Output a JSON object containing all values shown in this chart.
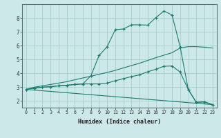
{
  "xlabel": "Humidex (Indice chaleur)",
  "bg_color": "#cce8e8",
  "grid_color": "#aacccc",
  "line_color": "#1a7a6e",
  "xlim": [
    -0.5,
    23.5
  ],
  "ylim": [
    1.5,
    9.0
  ],
  "x_ticks": [
    0,
    1,
    2,
    3,
    4,
    5,
    6,
    7,
    8,
    9,
    10,
    11,
    12,
    13,
    14,
    15,
    16,
    17,
    18,
    19,
    20,
    21,
    22,
    23
  ],
  "y_ticks": [
    2,
    3,
    4,
    5,
    6,
    7,
    8
  ],
  "line1_x": [
    0,
    1,
    2,
    3,
    4,
    5,
    6,
    7,
    8,
    9,
    10,
    11,
    12,
    13,
    14,
    15,
    16,
    17,
    18,
    19,
    20,
    21,
    22,
    23
  ],
  "line1_y": [
    2.82,
    2.92,
    2.98,
    3.02,
    3.08,
    3.12,
    3.18,
    3.22,
    3.82,
    5.28,
    5.92,
    7.15,
    7.2,
    7.5,
    7.5,
    7.48,
    8.02,
    8.5,
    8.22,
    5.92,
    2.82,
    1.88,
    1.92,
    1.72
  ],
  "line2_x": [
    0,
    1,
    2,
    3,
    4,
    5,
    6,
    7,
    8,
    9,
    10,
    11,
    12,
    13,
    14,
    15,
    16,
    17,
    18,
    19,
    20,
    21,
    22,
    23
  ],
  "line2_y": [
    2.82,
    2.92,
    2.98,
    3.02,
    3.08,
    3.12,
    3.18,
    3.22,
    3.22,
    3.22,
    3.28,
    3.45,
    3.6,
    3.75,
    3.88,
    4.1,
    4.28,
    4.5,
    4.52,
    4.08,
    2.82,
    1.88,
    1.92,
    1.72
  ],
  "line3_x": [
    0,
    1,
    2,
    3,
    4,
    5,
    6,
    7,
    8,
    9,
    10,
    11,
    12,
    13,
    14,
    15,
    16,
    17,
    18,
    19,
    20,
    21,
    22,
    23
  ],
  "line3_y": [
    2.82,
    2.98,
    3.08,
    3.18,
    3.28,
    3.38,
    3.52,
    3.65,
    3.78,
    3.92,
    4.05,
    4.2,
    4.38,
    4.55,
    4.72,
    4.92,
    5.12,
    5.3,
    5.48,
    5.82,
    5.92,
    5.92,
    5.88,
    5.82
  ],
  "line4_x": [
    0,
    23
  ],
  "line4_y": [
    2.82,
    1.72
  ]
}
